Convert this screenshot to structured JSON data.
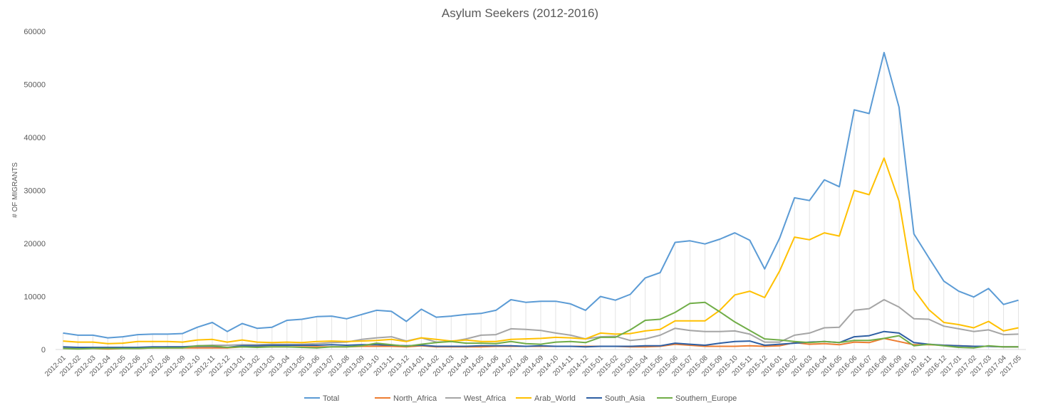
{
  "chart_data": {
    "type": "line",
    "title": "Asylum Seekers (2012-2016)",
    "ylabel": "# OF MIGRANTS",
    "xlabel": "",
    "ylim": [
      0,
      60000
    ],
    "yticks": [
      0,
      10000,
      20000,
      30000,
      40000,
      50000,
      60000
    ],
    "grid": "vertical drop lines",
    "legend": "bottom",
    "categories": [
      "2012-01",
      "2012-02",
      "2012-03",
      "2012-04",
      "2012-05",
      "2012-06",
      "2012-07",
      "2012-08",
      "2012-09",
      "2012-10",
      "2012-11",
      "2012-12",
      "2013-01",
      "2013-02",
      "2013-03",
      "2013-04",
      "2013-05",
      "2013-06",
      "2013-07",
      "2013-08",
      "2013-09",
      "2013-10",
      "2013-11",
      "2013-12",
      "2014-01",
      "2014-02",
      "2014-03",
      "2014-04",
      "2014-05",
      "2014-06",
      "2014-07",
      "2014-08",
      "2014-09",
      "2014-10",
      "2014-11",
      "2014-12",
      "2015-01",
      "2015-02",
      "2015-03",
      "2015-04",
      "2015-05",
      "2015-06",
      "2015-07",
      "2015-08",
      "2015-09",
      "2015-10",
      "2015-11",
      "2015-12",
      "2016-01",
      "2016-02",
      "2016-03",
      "2016-04",
      "2016-05",
      "2016-06",
      "2016-07",
      "2016-08",
      "2016-09",
      "2016-10",
      "2016-11",
      "2016-12",
      "2017-01",
      "2017-02",
      "2017-03",
      "2017-04",
      "2017-05"
    ],
    "series": [
      {
        "name": "Total",
        "color": "#5B9BD5",
        "values": [
          3100,
          2700,
          2700,
          2200,
          2400,
          2800,
          2900,
          2900,
          3000,
          4200,
          5100,
          3400,
          4900,
          4000,
          4200,
          5500,
          5700,
          6200,
          6300,
          5800,
          6600,
          7400,
          7200,
          5300,
          7600,
          6100,
          6300,
          6600,
          6800,
          7400,
          9400,
          8900,
          9100,
          9100,
          8600,
          7400,
          10000,
          9300,
          10400,
          13500,
          14500,
          20200,
          20500,
          19900,
          20800,
          22000,
          20600,
          15200,
          21000,
          28600,
          28100,
          32000,
          30700,
          45200,
          44500,
          56000,
          45700,
          21800,
          17300,
          12900,
          11000,
          9900,
          11500,
          8500,
          9300
        ]
      },
      {
        "name": "North_Africa",
        "color": "#ED7D31",
        "values": [
          300,
          200,
          200,
          100,
          200,
          200,
          300,
          300,
          300,
          300,
          300,
          300,
          500,
          500,
          500,
          500,
          500,
          500,
          500,
          500,
          600,
          600,
          600,
          500,
          700,
          500,
          500,
          500,
          500,
          600,
          600,
          600,
          600,
          600,
          600,
          600,
          600,
          600,
          500,
          500,
          600,
          1000,
          800,
          600,
          600,
          600,
          700,
          600,
          700,
          1300,
          1000,
          1100,
          900,
          1400,
          1300,
          2100,
          1500,
          900,
          900,
          800,
          700,
          600,
          600,
          500,
          500
        ]
      },
      {
        "name": "West_Africa",
        "color": "#A5A5A5",
        "values": [
          300,
          300,
          300,
          300,
          400,
          400,
          400,
          500,
          500,
          700,
          800,
          800,
          900,
          900,
          1000,
          1000,
          1000,
          1100,
          1300,
          1400,
          1900,
          2200,
          2400,
          1600,
          2200,
          1400,
          1500,
          2000,
          2700,
          2800,
          3900,
          3800,
          3600,
          3100,
          2700,
          2000,
          2400,
          2500,
          1700,
          2000,
          2700,
          4000,
          3600,
          3400,
          3400,
          3500,
          2900,
          1400,
          1400,
          2700,
          3100,
          4100,
          4200,
          7400,
          7700,
          9400,
          8000,
          5800,
          5700,
          4400,
          3900,
          3400,
          3700,
          2800,
          2900
        ]
      },
      {
        "name": "Arab_World",
        "color": "#FFC000",
        "values": [
          1600,
          1400,
          1400,
          1100,
          1200,
          1500,
          1500,
          1500,
          1400,
          1800,
          1900,
          1400,
          1800,
          1400,
          1300,
          1400,
          1300,
          1500,
          1600,
          1500,
          1600,
          1700,
          1900,
          1500,
          2200,
          1900,
          1600,
          1800,
          1500,
          1500,
          1900,
          2000,
          2100,
          2300,
          2200,
          2000,
          3100,
          2900,
          3000,
          3500,
          3800,
          5400,
          5400,
          5400,
          7400,
          10300,
          11000,
          9800,
          14800,
          21200,
          20700,
          22000,
          21400,
          30000,
          29200,
          36100,
          28000,
          11300,
          7500,
          5100,
          4700,
          4100,
          5300,
          3500,
          4100
        ]
      },
      {
        "name": "South_Asia",
        "color": "#2E5FA3",
        "values": [
          500,
          400,
          400,
          400,
          400,
          400,
          500,
          500,
          500,
          600,
          600,
          400,
          700,
          700,
          800,
          800,
          800,
          800,
          900,
          800,
          900,
          900,
          800,
          700,
          800,
          600,
          600,
          600,
          700,
          700,
          700,
          600,
          700,
          600,
          600,
          500,
          600,
          600,
          600,
          700,
          700,
          1200,
          1000,
          800,
          1200,
          1500,
          1600,
          800,
          1000,
          1200,
          1400,
          1500,
          1300,
          2400,
          2600,
          3400,
          3100,
          1300,
          1000,
          800,
          700,
          600,
          600,
          500,
          500
        ]
      },
      {
        "name": "Southern_Europe",
        "color": "#70AD47",
        "values": [
          200,
          100,
          200,
          200,
          200,
          200,
          300,
          300,
          300,
          700,
          700,
          400,
          500,
          400,
          500,
          500,
          400,
          300,
          500,
          500,
          700,
          1200,
          900,
          600,
          1000,
          1300,
          1500,
          1200,
          1200,
          1100,
          1500,
          1100,
          1000,
          1400,
          1500,
          1300,
          2300,
          2300,
          3700,
          5500,
          5700,
          7000,
          8700,
          8900,
          7100,
          5200,
          3600,
          2000,
          1800,
          1500,
          1300,
          1500,
          1300,
          1700,
          1700,
          2100,
          2600,
          700,
          1000,
          700,
          400,
          300,
          700,
          500,
          500
        ]
      }
    ]
  }
}
